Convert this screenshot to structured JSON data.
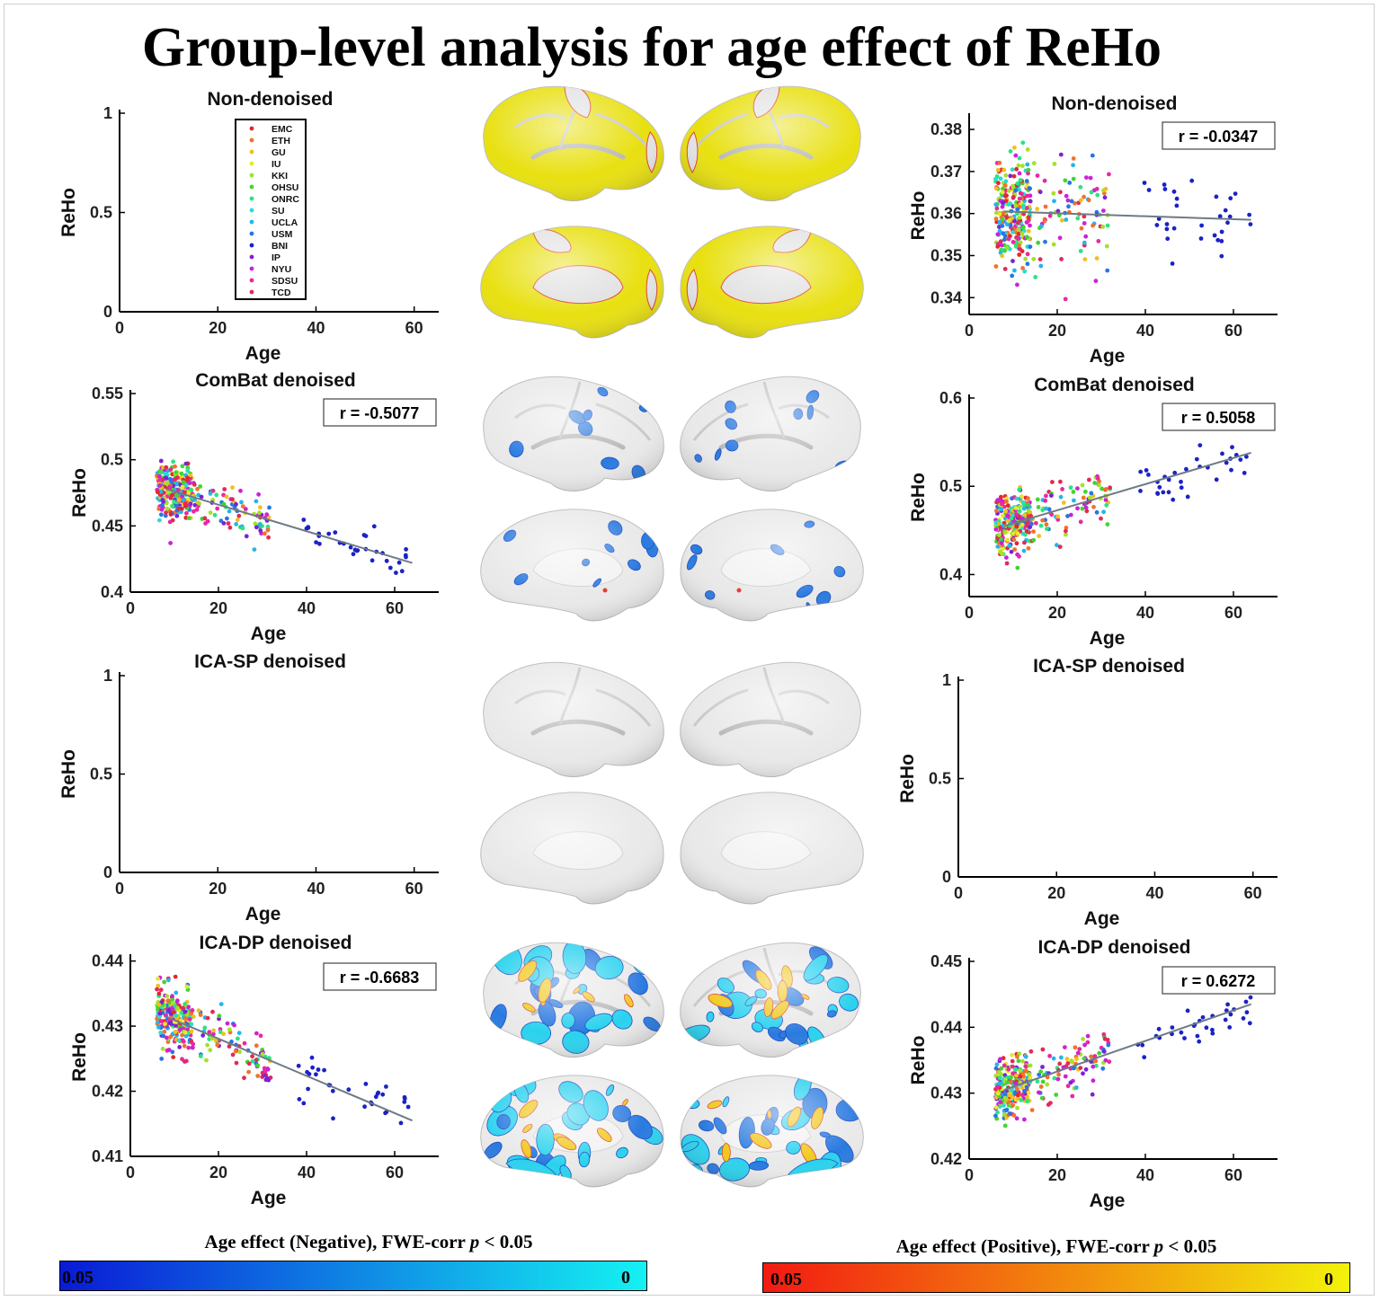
{
  "title": "Group-level analysis for age effect of ReHo",
  "colors": {
    "sites": {
      "EMC": "#e2282c",
      "ETH": "#f2722a",
      "GU": "#f1bf1e",
      "IU": "#e8e82a",
      "KKI": "#a3e22a",
      "OHSU": "#3fd632",
      "ONRC": "#2ae482",
      "SU": "#2adccf",
      "UCLA": "#22b6ec",
      "USM": "#2a74e4",
      "BNI": "#1a22c6",
      "IP": "#7a22d6",
      "NYU": "#cc22d6",
      "SDSU": "#e62aa0",
      "TCD": "#e22a58"
    },
    "fit_line": "#6e7b84",
    "brain_base": "#e9e9e9",
    "brain_yellow": "#e8e010",
    "neg_cluster": "#2a7ae0",
    "neg_cluster_light": "#2ad2ee",
    "pos_cluster": "#f0c81a",
    "pos_cluster_edge": "#e2402a"
  },
  "legend": {
    "sites": [
      "EMC",
      "ETH",
      "GU",
      "IU",
      "KKI",
      "OHSU",
      "ONRC",
      "SU",
      "UCLA",
      "USM",
      "BNI",
      "IP",
      "NYU",
      "SDSU",
      "TCD"
    ]
  },
  "colorbars": {
    "negative": {
      "label_prefix": "Age effect (Negative), FWE-corr ",
      "label_p": "p",
      "label_suffix": " < 0.05",
      "left_tick": "0.05",
      "right_tick": "0",
      "from": "#0a1ad6",
      "to": "#14f2f2"
    },
    "positive": {
      "label_prefix": "Age effect (Positive), FWE-corr ",
      "label_p": "p",
      "label_suffix": " < 0.05",
      "left_tick": "0.05",
      "right_tick": "0",
      "from": "#f21a12",
      "to": "#f2f20a"
    }
  },
  "brain_rows": [
    {
      "name": "non-denoised",
      "mode": "yellow"
    },
    {
      "name": "combat-denoised",
      "mode": "sparse-negative"
    },
    {
      "name": "ica-sp-denoised",
      "mode": "none"
    },
    {
      "name": "ica-dp-denoised",
      "mode": "mixed"
    }
  ],
  "chart_data": [
    {
      "id": "nd-neg",
      "type": "scatter",
      "title": "Non-denoised",
      "xlabel": "Age",
      "ylabel": "ReHo",
      "xlim": [
        0,
        65
      ],
      "ylim": [
        0,
        1
      ],
      "xticks": [
        0,
        20,
        40,
        60
      ],
      "yticks": [
        0,
        0.5,
        1
      ],
      "ytick_labels": [
        "0",
        "0.5",
        "1"
      ],
      "r_label": "",
      "legend": true,
      "trend": null,
      "points": "none"
    },
    {
      "id": "nd-pos",
      "type": "scatter",
      "title": "Non-denoised",
      "xlabel": "Age",
      "ylabel": "ReHo",
      "xlim": [
        0,
        70
      ],
      "ylim": [
        0.336,
        0.383
      ],
      "xticks": [
        0,
        20,
        40,
        60
      ],
      "yticks": [
        0.34,
        0.35,
        0.36,
        0.37,
        0.38
      ],
      "ytick_labels": [
        "0.34",
        "0.35",
        "0.36",
        "0.37",
        "0.38"
      ],
      "r_label": "r = -0.0347",
      "legend": false,
      "trend": {
        "x": [
          8,
          64
        ],
        "y": [
          0.3605,
          0.3585
        ]
      },
      "points": "generated",
      "spread": 0.012
    },
    {
      "id": "cb-neg",
      "type": "scatter",
      "title": "ComBat denoised",
      "xlabel": "Age",
      "ylabel": "ReHo",
      "xlim": [
        0,
        70
      ],
      "ylim": [
        0.4,
        0.55
      ],
      "xticks": [
        0,
        20,
        40,
        60
      ],
      "yticks": [
        0.4,
        0.45,
        0.5,
        0.55
      ],
      "ytick_labels": [
        "0.4",
        "0.45",
        "0.5",
        "0.55"
      ],
      "r_label": "r = -0.5077",
      "legend": false,
      "trend": {
        "x": [
          8,
          64
        ],
        "y": [
          0.478,
          0.422
        ]
      },
      "points": "generated",
      "spread": 0.018
    },
    {
      "id": "cb-pos",
      "type": "scatter",
      "title": "ComBat denoised",
      "xlabel": "Age",
      "ylabel": "ReHo",
      "xlim": [
        0,
        70
      ],
      "ylim": [
        0.375,
        0.6
      ],
      "xticks": [
        0,
        20,
        40,
        60
      ],
      "yticks": [
        0.4,
        0.5,
        0.6
      ],
      "ytick_labels": [
        "0.4",
        "0.5",
        "0.6"
      ],
      "r_label": "r = 0.5058",
      "legend": false,
      "trend": {
        "x": [
          8,
          64
        ],
        "y": [
          0.455,
          0.538
        ]
      },
      "points": "generated",
      "spread": 0.03
    },
    {
      "id": "sp-neg",
      "type": "scatter",
      "title": "ICA-SP denoised",
      "xlabel": "Age",
      "ylabel": "ReHo",
      "xlim": [
        0,
        65
      ],
      "ylim": [
        0,
        1
      ],
      "xticks": [
        0,
        20,
        40,
        60
      ],
      "yticks": [
        0,
        0.5,
        1
      ],
      "ytick_labels": [
        "0",
        "0.5",
        "1"
      ],
      "r_label": "",
      "legend": false,
      "trend": null,
      "points": "none"
    },
    {
      "id": "sp-pos",
      "type": "scatter",
      "title": "ICA-SP denoised",
      "xlabel": "Age",
      "ylabel": "ReHo",
      "xlim": [
        0,
        65
      ],
      "ylim": [
        0,
        1
      ],
      "xticks": [
        0,
        20,
        40,
        60
      ],
      "yticks": [
        0,
        0.5,
        1
      ],
      "ytick_labels": [
        "0",
        "0.5",
        "1"
      ],
      "r_label": "",
      "legend": false,
      "trend": null,
      "points": "none"
    },
    {
      "id": "dp-neg",
      "type": "scatter",
      "title": "ICA-DP denoised",
      "xlabel": "Age",
      "ylabel": "ReHo",
      "xlim": [
        0,
        70
      ],
      "ylim": [
        0.41,
        0.4405
      ],
      "xticks": [
        0,
        20,
        40,
        60
      ],
      "yticks": [
        0.41,
        0.42,
        0.43,
        0.44
      ],
      "ytick_labels": [
        "0.41",
        "0.42",
        "0.43",
        "0.44"
      ],
      "r_label": "r = -0.6683",
      "legend": false,
      "trend": {
        "x": [
          8,
          64
        ],
        "y": [
          0.4315,
          0.4155
        ]
      },
      "points": "generated",
      "spread": 0.0042
    },
    {
      "id": "dp-pos",
      "type": "scatter",
      "title": "ICA-DP denoised",
      "xlabel": "Age",
      "ylabel": "ReHo",
      "xlim": [
        0,
        70
      ],
      "ylim": [
        0.42,
        0.45
      ],
      "xticks": [
        0,
        20,
        40,
        60
      ],
      "yticks": [
        0.42,
        0.43,
        0.44,
        0.45
      ],
      "ytick_labels": [
        "0.42",
        "0.43",
        "0.44",
        "0.45"
      ],
      "r_label": "r = 0.6272",
      "legend": false,
      "trend": {
        "x": [
          8,
          64
        ],
        "y": [
          0.4305,
          0.4435
        ]
      },
      "points": "generated",
      "spread": 0.0042
    }
  ]
}
